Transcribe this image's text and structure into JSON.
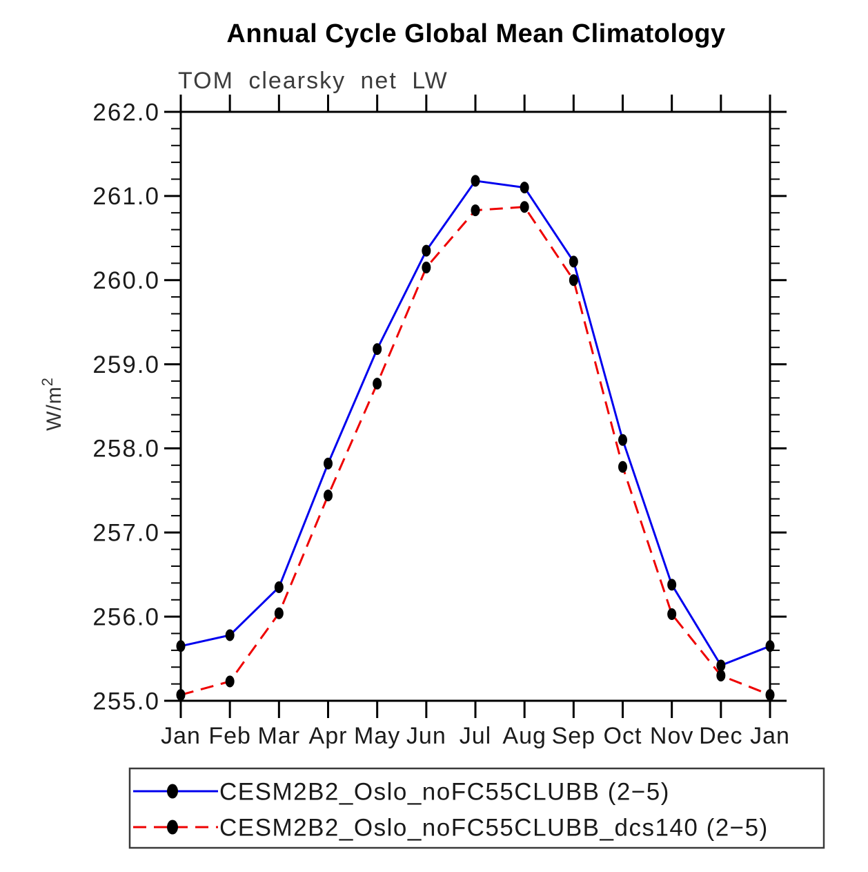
{
  "header": {
    "title": "Annual Cycle Global Mean Climatology",
    "subtitle": "TOM clearsky net LW"
  },
  "chart_data": {
    "type": "line",
    "title": "Annual Cycle Global Mean Climatology",
    "subtitle": "TOM clearsky net LW",
    "xlabel": "",
    "ylabel_base": "W/m",
    "ylabel_exp": "2",
    "x_categories": [
      "Jan",
      "Feb",
      "Mar",
      "Apr",
      "May",
      "Jun",
      "Jul",
      "Aug",
      "Sep",
      "Oct",
      "Nov",
      "Dec",
      "Jan"
    ],
    "ylim": [
      255.0,
      262.0
    ],
    "y_major_step": 1.0,
    "y_minor_step": 0.2,
    "y_tick_labels": [
      "255.0",
      "256.0",
      "257.0",
      "258.0",
      "259.0",
      "260.0",
      "261.0",
      "262.0"
    ],
    "grid": false,
    "legend_position": "bottom",
    "marker": {
      "shape": "filled-circle",
      "color": "#000000"
    },
    "series": [
      {
        "name": "CESM2B2_Oslo_noFC55CLUBB (2−5)",
        "color": "#0000ee",
        "style": "solid",
        "values": [
          255.65,
          255.78,
          256.35,
          257.82,
          259.18,
          260.35,
          261.18,
          261.1,
          260.22,
          258.1,
          256.38,
          255.42,
          255.65
        ]
      },
      {
        "name": "CESM2B2_Oslo_noFC55CLUBB_dcs140 (2−5)",
        "color": "#ee0000",
        "style": "dashed",
        "values": [
          255.07,
          255.23,
          256.04,
          257.44,
          258.77,
          260.15,
          260.83,
          260.87,
          260.0,
          257.78,
          256.03,
          255.3,
          255.07
        ]
      }
    ],
    "axis_color": "#000000"
  }
}
